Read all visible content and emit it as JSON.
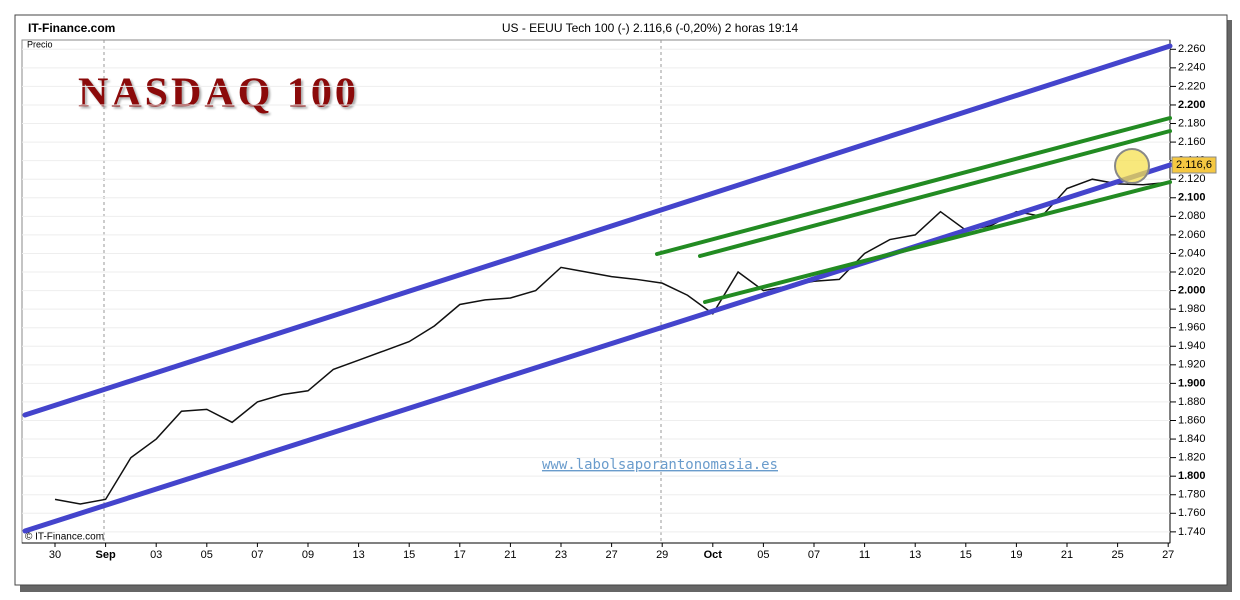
{
  "header": {
    "source": "IT-Finance.com",
    "instrument": "US - EEUU Tech 100 (-)   2.116,6 (-0,20%)   2 horas  19:14"
  },
  "chart_data": {
    "type": "line",
    "title": "NASDAQ 100",
    "y_label": "Precio",
    "watermark": "www.labolsaporantonomasia.es",
    "copyright": "© IT-Finance.com",
    "last_label": "2.116,6",
    "categories": [
      "30",
      null,
      "Sep",
      null,
      "03",
      null,
      "05",
      null,
      "07",
      null,
      "09",
      null,
      "13",
      null,
      "15",
      null,
      "17",
      null,
      "21",
      null,
      "23",
      null,
      "27",
      null,
      "29",
      null,
      "Oct",
      null,
      "05",
      null,
      "07",
      null,
      "11",
      null,
      "13",
      null,
      "15",
      null,
      "19",
      null,
      "21",
      null,
      "25",
      null,
      "27"
    ],
    "series": [
      {
        "name": "Precio",
        "color": "#111111",
        "values": [
          1775,
          1770,
          1775,
          1820,
          1840,
          1870,
          1872,
          1858,
          1880,
          1888,
          1892,
          1915,
          1925,
          1935,
          1945,
          1962,
          1985,
          1990,
          1992,
          2000,
          2025,
          2020,
          2015,
          2012,
          2008,
          1995,
          1975,
          2020,
          2000,
          2005,
          2010,
          2012,
          2040,
          2055,
          2060,
          2085,
          2065,
          2070,
          2085,
          2080,
          2110,
          2120,
          2115,
          2114,
          2116.6
        ]
      }
    ],
    "ylim": [
      1728,
      2270
    ],
    "yticks": [
      {
        "value": 1740,
        "label": "1.740"
      },
      {
        "value": 1760,
        "label": "1.760"
      },
      {
        "value": 1780,
        "label": "1.780"
      },
      {
        "value": 1800,
        "label": "1.800"
      },
      {
        "value": 1820,
        "label": "1.820"
      },
      {
        "value": 1840,
        "label": "1.840"
      },
      {
        "value": 1860,
        "label": "1.860"
      },
      {
        "value": 1880,
        "label": "1.880"
      },
      {
        "value": 1900,
        "label": "1.900"
      },
      {
        "value": 1920,
        "label": "1.920"
      },
      {
        "value": 1940,
        "label": "1.940"
      },
      {
        "value": 1960,
        "label": "1.960"
      },
      {
        "value": 1980,
        "label": "1.980"
      },
      {
        "value": 2000,
        "label": "2.000"
      },
      {
        "value": 2020,
        "label": "2.020"
      },
      {
        "value": 2040,
        "label": "2.040"
      },
      {
        "value": 2060,
        "label": "2.060"
      },
      {
        "value": 2080,
        "label": "2.080"
      },
      {
        "value": 2100,
        "label": "2.100"
      },
      {
        "value": 2120,
        "label": "2.120"
      },
      {
        "value": 2140,
        "label": "2.140"
      },
      {
        "value": 2160,
        "label": "2.160"
      },
      {
        "value": 2180,
        "label": "2.180"
      },
      {
        "value": 2200,
        "label": "2.200"
      },
      {
        "value": 2220,
        "label": "2.220"
      },
      {
        "value": 2240,
        "label": "2.240"
      },
      {
        "value": 2260,
        "label": "2.260"
      }
    ]
  }
}
